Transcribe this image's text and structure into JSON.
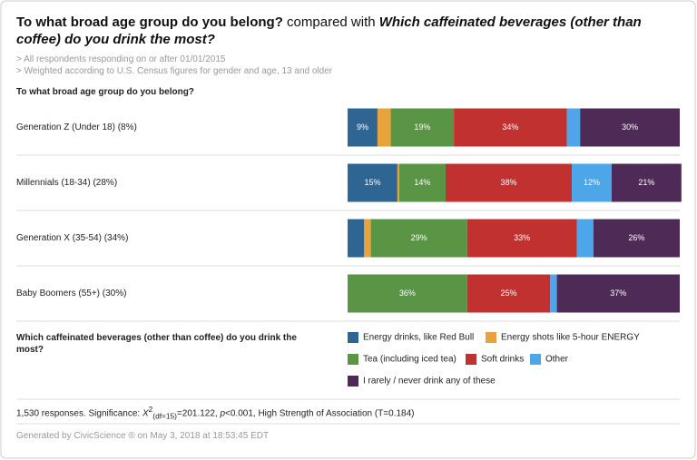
{
  "chart_data": {
    "type": "stacked-bar-horizontal",
    "title_parts": [
      "To what broad age group do you belong?",
      "compared with",
      "Which caffeinated beverages (other than coffee) do you drink the most?"
    ],
    "notes": [
      "> All respondents responding on or after 01/01/2015",
      "> Weighted according to U.S. Census figures for gender and age, 13 and older"
    ],
    "y_axis_title": "To what broad age group do you belong?",
    "legend_title": "Which caffeinated beverages (other than coffee) do you drink the most?",
    "categories": [
      "Generation Z (Under 18) (8%)",
      "Millennials (18-34) (28%)",
      "Generation X (35-54) (34%)",
      "Baby Boomers (55+) (30%)"
    ],
    "xlim": [
      0,
      100
    ],
    "series": [
      {
        "name": "Energy drinks, like Red Bull",
        "color": "#2e6593",
        "values": [
          9,
          15,
          5,
          0
        ],
        "value_labels": [
          "9%",
          "15%",
          null,
          null
        ]
      },
      {
        "name": "Energy shots like 5-hour ENERGY",
        "color": "#e8a43c",
        "values": [
          4,
          0.5,
          2,
          0
        ],
        "value_labels": [
          null,
          null,
          null,
          null
        ]
      },
      {
        "name": "Tea (including iced tea)",
        "color": "#5a9445",
        "values": [
          19,
          14,
          29,
          36
        ],
        "value_labels": [
          "19%",
          "14%",
          "29%",
          "36%"
        ]
      },
      {
        "name": "Soft drinks",
        "color": "#c0312f",
        "values": [
          34,
          38,
          33,
          25
        ],
        "value_labels": [
          "34%",
          "38%",
          "33%",
          "25%"
        ]
      },
      {
        "name": "Other",
        "color": "#4da6e8",
        "values": [
          4,
          12,
          5,
          2
        ],
        "value_labels": [
          null,
          "12%",
          null,
          null
        ]
      },
      {
        "name": "I rarely / never drink any of these",
        "color": "#4e2a57",
        "values": [
          30,
          21,
          26,
          37
        ],
        "value_labels": [
          "30%",
          "21%",
          "26%",
          "37%"
        ]
      }
    ],
    "footnote_parts": [
      "1,530 responses. Significance: ",
      "X",
      "2",
      "(df=15)",
      "=201.122, ",
      "p",
      "<0.001, High Strength of Association (T=0.184)"
    ],
    "generated": "Generated by CivicScience ® on May 3, 2018 at 18:53:45 EDT"
  }
}
